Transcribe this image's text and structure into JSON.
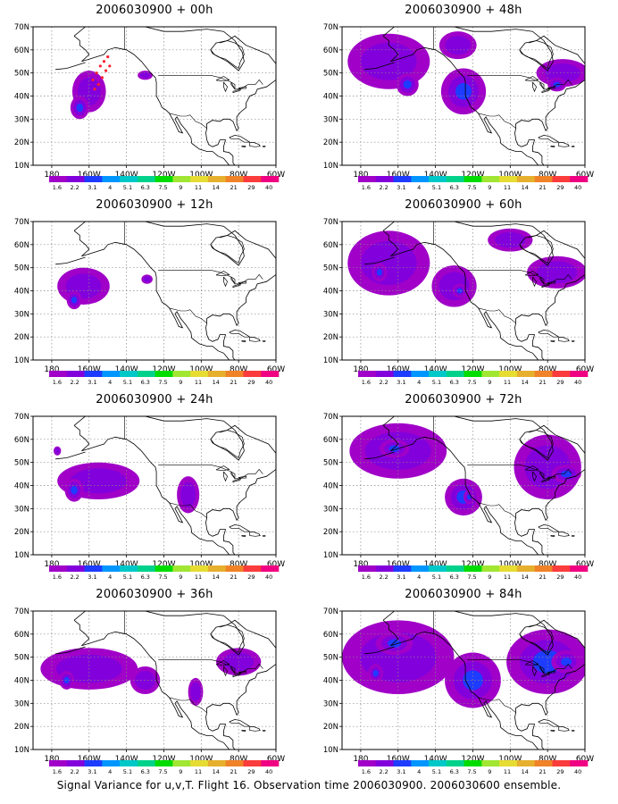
{
  "footer": "Signal Variance for u,v,T. Flight 16. Observation time 2006030900. 2006030600 ensemble.",
  "axes": {
    "y_ticks": [
      "70N",
      "60N",
      "50N",
      "40N",
      "30N",
      "20N",
      "10N"
    ],
    "x_ticks": [
      "180",
      "160W",
      "140W",
      "120W",
      "100W",
      "80W",
      "60W"
    ]
  },
  "colorbar": {
    "labels": [
      "1.6",
      "2.2",
      "3.1",
      "4",
      "5.1",
      "6.3",
      "7.5",
      "9",
      "11",
      "14",
      "21",
      "29",
      "40"
    ],
    "colors": [
      "#a000c8",
      "#8200dc",
      "#1e3cff",
      "#0096ff",
      "#00c8c8",
      "#00d28c",
      "#00dc00",
      "#a0e632",
      "#e6dc32",
      "#e6af2d",
      "#f08228",
      "#fa3c3c",
      "#f00082"
    ]
  },
  "chart_data": [
    {
      "type": "heatmap",
      "title": "2006030900 + 00h",
      "ylim": [
        10,
        70
      ],
      "xlim": [
        -190,
        -60
      ],
      "blobs": [
        {
          "lon": -160,
          "lat": 42,
          "rlon": 9,
          "rlat": 9,
          "level": 1
        },
        {
          "lon": -165,
          "lat": 35,
          "rlon": 5,
          "rlat": 5,
          "level": 2
        },
        {
          "lon": -130,
          "lat": 49,
          "rlon": 4,
          "rlat": 2,
          "level": 1
        }
      ],
      "markers": [
        {
          "lon": -158,
          "lat": 47
        },
        {
          "lon": -156,
          "lat": 50
        },
        {
          "lon": -154,
          "lat": 53
        },
        {
          "lon": -152,
          "lat": 55
        },
        {
          "lon": -150,
          "lat": 57
        },
        {
          "lon": -155,
          "lat": 45
        },
        {
          "lon": -157,
          "lat": 43
        },
        {
          "lon": -153,
          "lat": 48
        },
        {
          "lon": -151,
          "lat": 51
        },
        {
          "lon": -149,
          "lat": 53
        }
      ]
    },
    {
      "type": "heatmap",
      "title": "2006030900 + 48h",
      "ylim": [
        10,
        70
      ],
      "xlim": [
        -190,
        -60
      ],
      "blobs": [
        {
          "lon": -165,
          "lat": 55,
          "rlon": 22,
          "rlat": 12,
          "level": 1
        },
        {
          "lon": -155,
          "lat": 45,
          "rlon": 6,
          "rlat": 5,
          "level": 3
        },
        {
          "lon": -125,
          "lat": 42,
          "rlon": 12,
          "rlat": 10,
          "level": 2
        },
        {
          "lon": -128,
          "lat": 62,
          "rlon": 10,
          "rlat": 6,
          "level": 1
        },
        {
          "lon": -72,
          "lat": 50,
          "rlon": 14,
          "rlat": 6,
          "level": 1
        },
        {
          "lon": -75,
          "lat": 45,
          "rlon": 5,
          "rlat": 3,
          "level": 2
        }
      ],
      "markers": []
    },
    {
      "type": "heatmap",
      "title": "2006030900 + 12h",
      "ylim": [
        10,
        70
      ],
      "xlim": [
        -190,
        -60
      ],
      "blobs": [
        {
          "lon": -163,
          "lat": 42,
          "rlon": 14,
          "rlat": 8,
          "level": 1
        },
        {
          "lon": -168,
          "lat": 36,
          "rlon": 4,
          "rlat": 4,
          "level": 2
        },
        {
          "lon": -129,
          "lat": 45,
          "rlon": 3,
          "rlat": 2,
          "level": 1
        }
      ],
      "markers": []
    },
    {
      "type": "heatmap",
      "title": "2006030900 + 60h",
      "ylim": [
        10,
        70
      ],
      "xlim": [
        -190,
        -60
      ],
      "blobs": [
        {
          "lon": -165,
          "lat": 52,
          "rlon": 22,
          "rlat": 14,
          "level": 1
        },
        {
          "lon": -170,
          "lat": 48,
          "rlon": 4,
          "rlat": 4,
          "level": 3
        },
        {
          "lon": -130,
          "lat": 42,
          "rlon": 12,
          "rlat": 9,
          "level": 1
        },
        {
          "lon": -127,
          "lat": 40,
          "rlon": 4,
          "rlat": 3,
          "level": 3
        },
        {
          "lon": -75,
          "lat": 48,
          "rlon": 16,
          "rlat": 7,
          "level": 1
        },
        {
          "lon": -100,
          "lat": 62,
          "rlon": 12,
          "rlat": 5,
          "level": 1
        }
      ],
      "markers": []
    },
    {
      "type": "heatmap",
      "title": "2006030900 + 24h",
      "ylim": [
        10,
        70
      ],
      "xlim": [
        -190,
        -60
      ],
      "blobs": [
        {
          "lon": -155,
          "lat": 42,
          "rlon": 22,
          "rlat": 8,
          "level": 1
        },
        {
          "lon": -168,
          "lat": 38,
          "rlon": 5,
          "rlat": 5,
          "level": 3
        },
        {
          "lon": -107,
          "lat": 36,
          "rlon": 6,
          "rlat": 8,
          "level": 1
        },
        {
          "lon": -177,
          "lat": 55,
          "rlon": 2,
          "rlat": 2,
          "level": 1
        }
      ],
      "markers": []
    },
    {
      "type": "heatmap",
      "title": "2006030900 + 72h",
      "ylim": [
        10,
        70
      ],
      "xlim": [
        -190,
        -60
      ],
      "blobs": [
        {
          "lon": -160,
          "lat": 55,
          "rlon": 26,
          "rlat": 12,
          "level": 1
        },
        {
          "lon": -162,
          "lat": 56,
          "rlon": 8,
          "rlat": 4,
          "level": 2
        },
        {
          "lon": -125,
          "lat": 35,
          "rlon": 10,
          "rlat": 8,
          "level": 2
        },
        {
          "lon": -122,
          "lat": 35,
          "rlon": 3,
          "rlat": 3,
          "level": 4
        },
        {
          "lon": -80,
          "lat": 48,
          "rlon": 18,
          "rlat": 14,
          "level": 1
        },
        {
          "lon": -70,
          "lat": 45,
          "rlon": 8,
          "rlat": 4,
          "level": 2
        }
      ],
      "markers": []
    },
    {
      "type": "heatmap",
      "title": "2006030900 + 36h",
      "ylim": [
        10,
        70
      ],
      "xlim": [
        -190,
        -60
      ],
      "blobs": [
        {
          "lon": -160,
          "lat": 45,
          "rlon": 26,
          "rlat": 9,
          "level": 1
        },
        {
          "lon": -172,
          "lat": 40,
          "rlon": 4,
          "rlat": 4,
          "level": 2
        },
        {
          "lon": -130,
          "lat": 40,
          "rlon": 8,
          "rlat": 6,
          "level": 1
        },
        {
          "lon": -80,
          "lat": 48,
          "rlon": 12,
          "rlat": 6,
          "level": 1
        },
        {
          "lon": -103,
          "lat": 35,
          "rlon": 4,
          "rlat": 6,
          "level": 1
        }
      ],
      "markers": []
    },
    {
      "type": "heatmap",
      "title": "2006030900 + 84h",
      "ylim": [
        10,
        70
      ],
      "xlim": [
        -190,
        -60
      ],
      "blobs": [
        {
          "lon": -160,
          "lat": 50,
          "rlon": 30,
          "rlat": 16,
          "level": 1
        },
        {
          "lon": -162,
          "lat": 56,
          "rlon": 10,
          "rlat": 5,
          "level": 3
        },
        {
          "lon": -172,
          "lat": 43,
          "rlon": 4,
          "rlat": 4,
          "level": 4
        },
        {
          "lon": -120,
          "lat": 40,
          "rlon": 15,
          "rlat": 12,
          "level": 2
        },
        {
          "lon": -80,
          "lat": 48,
          "rlon": 22,
          "rlat": 14,
          "level": 2
        },
        {
          "lon": -70,
          "lat": 48,
          "rlon": 8,
          "rlat": 5,
          "level": 4
        }
      ],
      "markers": []
    }
  ]
}
